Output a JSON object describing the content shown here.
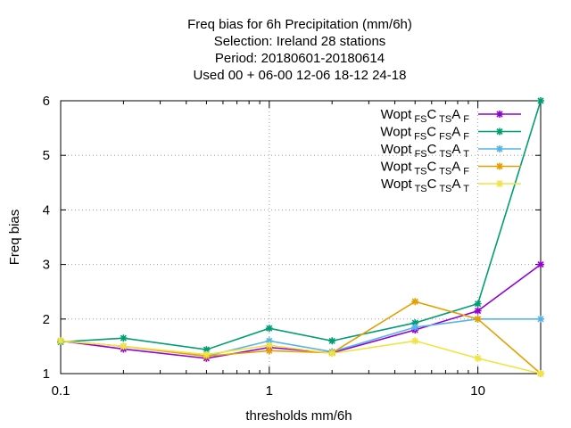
{
  "chart_data": {
    "type": "line",
    "title_lines": [
      "Freq bias  for 6h Precipitation (mm/6h)",
      "Selection: Ireland     28 stations",
      "Period: 20180601-20180614",
      "Used  00 + 06-00 12-06 18-12 24-18"
    ],
    "xlabel": "thresholds mm/6h",
    "ylabel": "Freq bias",
    "x_scale": "log",
    "xlim": [
      0.1,
      20
    ],
    "ylim": [
      1,
      6
    ],
    "x_ticks": [
      0.1,
      1,
      10
    ],
    "x_tick_labels": [
      "0.1",
      "1",
      "10"
    ],
    "y_ticks": [
      1,
      2,
      3,
      4,
      5,
      6
    ],
    "y_tick_labels": [
      "1",
      "2",
      "3",
      "4",
      "5",
      "6"
    ],
    "grid": true,
    "legend_position": "top-right",
    "x": [
      0.1,
      0.2,
      0.5,
      1,
      2,
      5,
      10,
      20
    ],
    "series": [
      {
        "name_parts": [
          "Wopt",
          "FS",
          "C",
          "TS",
          "A",
          "F"
        ],
        "color": "#9400d3",
        "marker": "star",
        "values": [
          1.6,
          1.45,
          1.28,
          1.48,
          1.38,
          1.8,
          2.15,
          3.0
        ]
      },
      {
        "name_parts": [
          "Wopt",
          "FS",
          "C",
          "FS",
          "A",
          "F"
        ],
        "color": "#009e73",
        "marker": "star",
        "values": [
          1.58,
          1.65,
          1.44,
          1.83,
          1.6,
          1.93,
          2.28,
          6.0
        ]
      },
      {
        "name_parts": [
          "Wopt",
          "FS",
          "C",
          "TS",
          "A",
          "T"
        ],
        "color": "#56b4e9",
        "marker": "star",
        "values": [
          1.6,
          1.5,
          1.32,
          1.6,
          1.4,
          1.85,
          2.0,
          2.0
        ]
      },
      {
        "name_parts": [
          "Wopt",
          "TS",
          "C",
          "TS",
          "A",
          "F"
        ],
        "color": "#e69f00",
        "marker": "star",
        "values": [
          1.6,
          1.5,
          1.32,
          1.42,
          1.38,
          2.32,
          2.0,
          1.0
        ]
      },
      {
        "name_parts": [
          "Wopt",
          "TS",
          "C",
          "TS",
          "A",
          "T"
        ],
        "color": "#f0e442",
        "marker": "star",
        "values": [
          1.6,
          1.5,
          1.35,
          1.52,
          1.37,
          1.6,
          1.28,
          1.0
        ]
      }
    ]
  }
}
